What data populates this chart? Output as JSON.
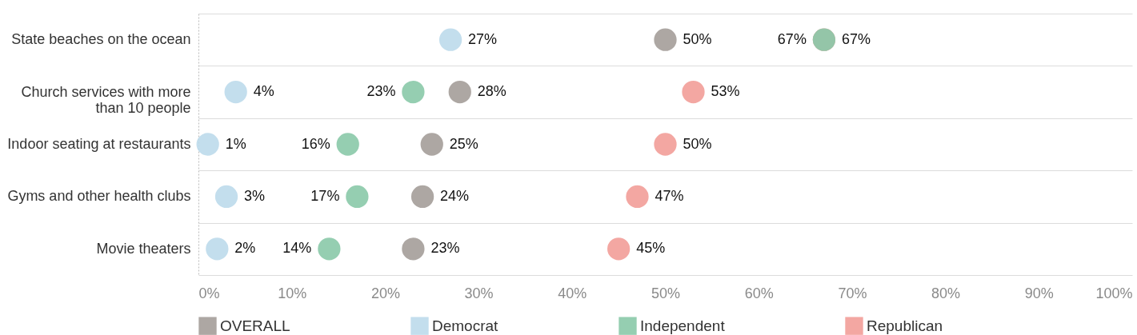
{
  "chart_data": {
    "type": "scatter",
    "orientation": "horizontal",
    "categories": [
      "State beaches on the ocean",
      "Church services with more than 10 people",
      "Indoor seating at restaurants",
      "Gyms and other health clubs",
      "Movie theaters"
    ],
    "xlim": [
      0,
      100
    ],
    "xticks": [
      {
        "value": 0,
        "label": "0%"
      },
      {
        "value": 10,
        "label": "10%"
      },
      {
        "value": 20,
        "label": "20%"
      },
      {
        "value": 30,
        "label": "30%"
      },
      {
        "value": 40,
        "label": "40%"
      },
      {
        "value": 50,
        "label": "50%"
      },
      {
        "value": 60,
        "label": "60%"
      },
      {
        "value": 70,
        "label": "70%"
      },
      {
        "value": 80,
        "label": "80%"
      },
      {
        "value": 90,
        "label": "90%"
      },
      {
        "value": 100,
        "label": "100%"
      }
    ],
    "grid": "y",
    "legend": "bottom",
    "marker": "circle",
    "series": [
      {
        "name": "OVERALL",
        "color": "#a49d99",
        "values": [
          50,
          28,
          25,
          24,
          23
        ],
        "value_labels": [
          "50%",
          "28%",
          "25%",
          "24%",
          "23%"
        ]
      },
      {
        "name": "Democrat",
        "color": "#bcdaeb",
        "values": [
          27,
          4,
          1,
          3,
          2
        ],
        "value_labels": [
          "27%",
          "4%",
          "1%",
          "3%",
          "2%"
        ]
      },
      {
        "name": "Independent",
        "color": "#89c9a8",
        "values": [
          67,
          23,
          16,
          17,
          14
        ],
        "value_labels": [
          "67%",
          "23%",
          "16%",
          "17%",
          "14%"
        ]
      },
      {
        "name": "Republican",
        "color": "#f29d98",
        "values": [
          67,
          53,
          50,
          47,
          45
        ],
        "value_labels": [
          "67%",
          "53%",
          "50%",
          "47%",
          "45%"
        ]
      }
    ]
  }
}
